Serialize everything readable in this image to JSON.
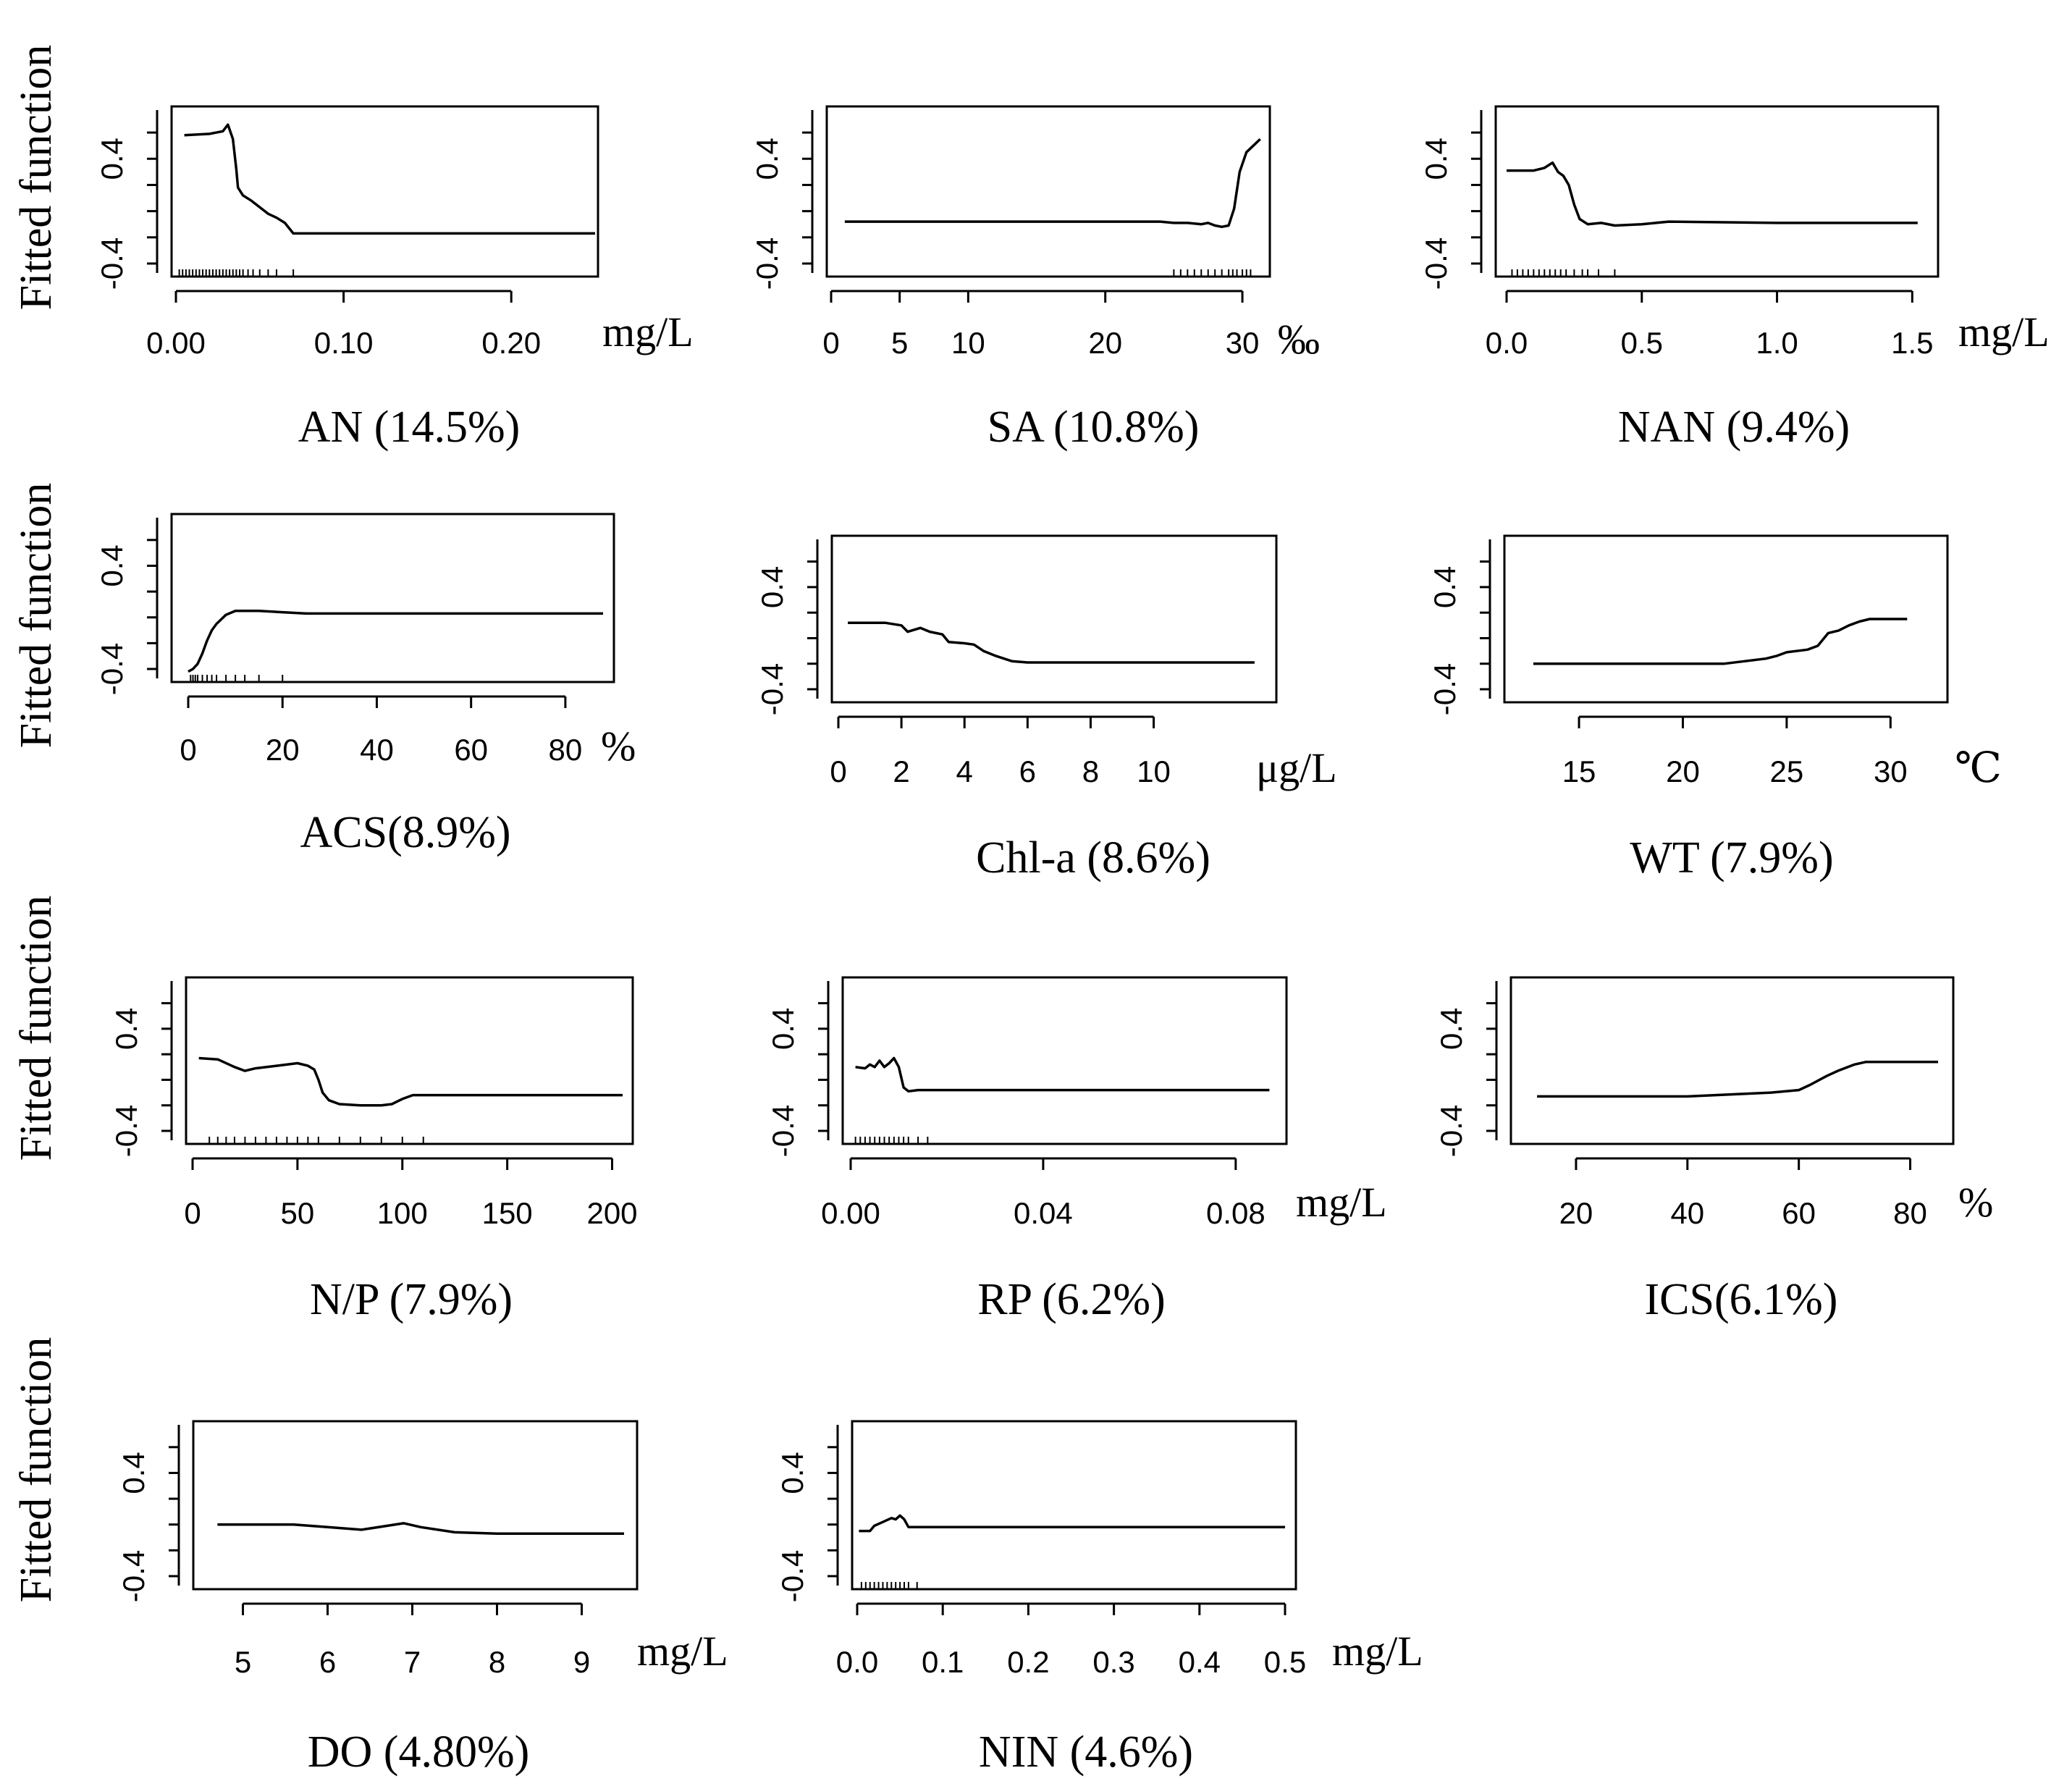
{
  "figure": {
    "ylabel": "Fitted function"
  },
  "chart_data": [
    {
      "type": "line",
      "title": "AN (14.5%)",
      "unit": "mg/L",
      "xlim": [
        0,
        0.25
      ],
      "ylim": [
        -0.4,
        0.7
      ],
      "xticks": [
        0,
        0.1,
        0.2
      ],
      "xtick_labels": [
        "0.00",
        "0.10",
        "0.20"
      ],
      "yticks": [
        -0.4,
        0.4
      ],
      "ytick_labels": [
        "-0.4",
        "0.4"
      ],
      "rug": [
        0.002,
        0.004,
        0.006,
        0.008,
        0.01,
        0.012,
        0.014,
        0.016,
        0.018,
        0.02,
        0.022,
        0.024,
        0.026,
        0.028,
        0.03,
        0.032,
        0.034,
        0.036,
        0.038,
        0.04,
        0.043,
        0.046,
        0.05,
        0.055,
        0.06,
        0.07
      ],
      "x": [
        0.005,
        0.02,
        0.028,
        0.031,
        0.034,
        0.036,
        0.037,
        0.04,
        0.045,
        0.05,
        0.055,
        0.06,
        0.065,
        0.07,
        0.08,
        0.1,
        0.25
      ],
      "y": [
        0.58,
        0.59,
        0.61,
        0.66,
        0.55,
        0.32,
        0.18,
        0.12,
        0.08,
        0.03,
        -0.02,
        -0.05,
        -0.09,
        -0.17,
        -0.17,
        -0.17,
        -0.17
      ]
    },
    {
      "type": "line",
      "title": "SA (10.8%)",
      "unit": "‰",
      "xlim": [
        0,
        31
      ],
      "ylim": [
        -0.4,
        0.7
      ],
      "xticks": [
        0,
        5,
        10,
        20,
        30
      ],
      "xtick_labels": [
        "0",
        "5",
        "10",
        "20",
        "30"
      ],
      "yticks": [
        -0.4,
        0.4
      ],
      "ytick_labels": [
        "-0.4",
        "0.4"
      ],
      "rug": [
        25,
        25.5,
        26,
        26.5,
        27,
        27.5,
        28,
        28.5,
        29,
        29.3,
        29.6,
        30,
        30.3,
        30.6
      ],
      "x": [
        1,
        10,
        20,
        24,
        25,
        26,
        27,
        27.5,
        28,
        28.5,
        29,
        29.4,
        29.8,
        30.3,
        30.8,
        31.3
      ],
      "y": [
        -0.08,
        -0.08,
        -0.08,
        -0.08,
        -0.09,
        -0.09,
        -0.1,
        -0.09,
        -0.11,
        -0.12,
        -0.11,
        0.02,
        0.3,
        0.45,
        0.5,
        0.55
      ]
    },
    {
      "type": "line",
      "title": "NAN (9.4%)",
      "unit": "mg/L",
      "xlim": [
        0,
        1.55
      ],
      "ylim": [
        -0.4,
        0.7
      ],
      "xticks": [
        0,
        0.5,
        1.0,
        1.5
      ],
      "xtick_labels": [
        "0.0",
        "0.5",
        "1.0",
        "1.5"
      ],
      "yticks": [
        -0.4,
        0.4
      ],
      "ytick_labels": [
        "-0.4",
        "0.4"
      ],
      "rug": [
        0.02,
        0.04,
        0.06,
        0.08,
        0.1,
        0.12,
        0.14,
        0.16,
        0.18,
        0.2,
        0.22,
        0.25,
        0.28,
        0.3,
        0.34,
        0.4
      ],
      "x": [
        0,
        0.1,
        0.14,
        0.17,
        0.19,
        0.21,
        0.23,
        0.25,
        0.27,
        0.3,
        0.35,
        0.4,
        0.5,
        0.6,
        1.0,
        1.52
      ],
      "y": [
        0.31,
        0.31,
        0.33,
        0.37,
        0.3,
        0.27,
        0.2,
        0.05,
        -0.06,
        -0.1,
        -0.09,
        -0.11,
        -0.1,
        -0.08,
        -0.09,
        -0.09
      ]
    },
    {
      "type": "line",
      "title": "ACS(8.9%)",
      "unit": "%",
      "xlim": [
        0,
        88
      ],
      "ylim": [
        -0.4,
        0.7
      ],
      "xticks": [
        0,
        20,
        40,
        60,
        80
      ],
      "xtick_labels": [
        "0",
        "20",
        "40",
        "60",
        "80"
      ],
      "yticks": [
        -0.4,
        0.4
      ],
      "ytick_labels": [
        "-0.4",
        "0.4"
      ],
      "rug": [
        0.5,
        1,
        1.5,
        2,
        3,
        4,
        5,
        6,
        8,
        10,
        12,
        15,
        20
      ],
      "x": [
        0,
        1,
        2,
        3,
        4,
        5,
        6,
        8,
        10,
        12,
        15,
        20,
        25,
        50,
        88
      ],
      "y": [
        -0.42,
        -0.4,
        -0.36,
        -0.28,
        -0.18,
        -0.1,
        -0.05,
        0.02,
        0.05,
        0.05,
        0.05,
        0.04,
        0.03,
        0.03,
        0.03
      ]
    },
    {
      "type": "line",
      "title": "Chl-a (8.6%)",
      "unit": "μg/L",
      "xlim": [
        0,
        13.5
      ],
      "ylim": [
        -0.4,
        0.7
      ],
      "xticks": [
        0,
        2,
        4,
        6,
        8,
        10
      ],
      "xtick_labels": [
        "0",
        "2",
        "4",
        "6",
        "8",
        "10"
      ],
      "yticks": [
        -0.4,
        0.4
      ],
      "ytick_labels": [
        "-0.4",
        "0.4"
      ],
      "rug": [],
      "x": [
        0.3,
        1.5,
        2,
        2.2,
        2.6,
        2.9,
        3.3,
        3.5,
        4,
        4.3,
        4.6,
        5,
        5.5,
        6,
        8,
        13.2
      ],
      "y": [
        0.12,
        0.12,
        0.1,
        0.05,
        0.08,
        0.05,
        0.03,
        -0.03,
        -0.04,
        -0.05,
        -0.1,
        -0.14,
        -0.18,
        -0.19,
        -0.19,
        -0.19
      ]
    },
    {
      "type": "line",
      "title": "WT (7.9%)",
      "unit": "℃",
      "xlim": [
        12,
        31
      ],
      "ylim": [
        -0.4,
        0.7
      ],
      "xticks": [
        15,
        20,
        25,
        30
      ],
      "xtick_labels": [
        "15",
        "20",
        "25",
        "30"
      ],
      "yticks": [
        -0.4,
        0.4
      ],
      "ytick_labels": [
        "-0.4",
        "0.4"
      ],
      "rug": [],
      "x": [
        12.8,
        18,
        22,
        23,
        24,
        24.5,
        25,
        26,
        26.5,
        27,
        27.5,
        28,
        28.5,
        29,
        30,
        30.8
      ],
      "y": [
        -0.2,
        -0.2,
        -0.2,
        -0.18,
        -0.16,
        -0.14,
        -0.11,
        -0.09,
        -0.06,
        0.04,
        0.06,
        0.1,
        0.13,
        0.15,
        0.15,
        0.15
      ]
    },
    {
      "type": "line",
      "title": "N/P (7.9%)",
      "unit": "",
      "xlim": [
        0,
        205
      ],
      "ylim": [
        -0.4,
        0.7
      ],
      "xticks": [
        0,
        50,
        100,
        150,
        200
      ],
      "xtick_labels": [
        "0",
        "50",
        "100",
        "150",
        "200"
      ],
      "yticks": [
        -0.4,
        0.4
      ],
      "ytick_labels": [
        "-0.4",
        "0.4"
      ],
      "rug": [
        8,
        12,
        16,
        20,
        25,
        30,
        35,
        40,
        45,
        50,
        55,
        60,
        70,
        80,
        90,
        100,
        110
      ],
      "x": [
        3,
        12,
        20,
        25,
        30,
        40,
        50,
        55,
        58,
        60,
        62,
        65,
        70,
        80,
        90,
        95,
        100,
        105,
        110,
        205
      ],
      "y": [
        0.17,
        0.16,
        0.1,
        0.07,
        0.09,
        0.11,
        0.13,
        0.11,
        0.08,
        0.0,
        -0.1,
        -0.16,
        -0.19,
        -0.2,
        -0.2,
        -0.19,
        -0.15,
        -0.12,
        -0.12,
        -0.12
      ]
    },
    {
      "type": "line",
      "title": "RP (6.2%)",
      "unit": "mg/L",
      "xlim": [
        0,
        0.088
      ],
      "ylim": [
        -0.4,
        0.7
      ],
      "xticks": [
        0,
        0.04,
        0.08
      ],
      "xtick_labels": [
        "0.00",
        "0.04",
        "0.08"
      ],
      "yticks": [
        -0.4,
        0.4
      ],
      "ytick_labels": [
        "-0.4",
        "0.4"
      ],
      "rug": [
        0.001,
        0.002,
        0.003,
        0.004,
        0.005,
        0.006,
        0.007,
        0.008,
        0.009,
        0.01,
        0.011,
        0.012,
        0.014,
        0.016
      ],
      "x": [
        0.001,
        0.003,
        0.004,
        0.005,
        0.006,
        0.007,
        0.008,
        0.009,
        0.01,
        0.011,
        0.012,
        0.014,
        0.02,
        0.087
      ],
      "y": [
        0.1,
        0.09,
        0.12,
        0.1,
        0.15,
        0.1,
        0.13,
        0.17,
        0.1,
        -0.06,
        -0.09,
        -0.08,
        -0.08,
        -0.08
      ]
    },
    {
      "type": "line",
      "title": "ICS(6.1%)",
      "unit": "%",
      "xlim": [
        10,
        85
      ],
      "ylim": [
        -0.4,
        0.7
      ],
      "xticks": [
        20,
        40,
        60,
        80
      ],
      "xtick_labels": [
        "20",
        "40",
        "60",
        "80"
      ],
      "yticks": [
        -0.4,
        0.4
      ],
      "ytick_labels": [
        "-0.4",
        "0.4"
      ],
      "rug": [],
      "x": [
        13,
        30,
        40,
        45,
        50,
        55,
        60,
        62,
        65,
        67,
        70,
        72,
        75,
        85
      ],
      "y": [
        -0.13,
        -0.13,
        -0.13,
        -0.12,
        -0.11,
        -0.1,
        -0.08,
        -0.04,
        0.03,
        0.07,
        0.12,
        0.14,
        0.14,
        0.14
      ]
    },
    {
      "type": "line",
      "title": "DO (4.80%)",
      "unit": "mg/L",
      "xlim": [
        4.5,
        9.5
      ],
      "ylim": [
        -0.4,
        0.7
      ],
      "xticks": [
        5,
        6,
        7,
        8,
        9
      ],
      "xtick_labels": [
        "5",
        "6",
        "7",
        "8",
        "9"
      ],
      "yticks": [
        -0.4,
        0.4
      ],
      "ytick_labels": [
        "-0.4",
        "0.4"
      ],
      "rug": [],
      "x": [
        4.7,
        5.6,
        6.0,
        6.4,
        6.7,
        6.9,
        7.1,
        7.5,
        8.0,
        9.5
      ],
      "y": [
        0.0,
        0.0,
        -0.02,
        -0.04,
        -0.01,
        0.01,
        -0.02,
        -0.06,
        -0.07,
        -0.07
      ]
    },
    {
      "type": "line",
      "title": "NIN (4.6%)",
      "unit": "mg/L",
      "xlim": [
        0,
        0.5
      ],
      "ylim": [
        -0.4,
        0.7
      ],
      "xticks": [
        0,
        0.1,
        0.2,
        0.3,
        0.4,
        0.5
      ],
      "xtick_labels": [
        "0.0",
        "0.1",
        "0.2",
        "0.3",
        "0.4",
        "0.5"
      ],
      "yticks": [
        -0.4,
        0.4
      ],
      "ytick_labels": [
        "-0.4",
        "0.4"
      ],
      "rug": [
        0.005,
        0.01,
        0.015,
        0.02,
        0.025,
        0.03,
        0.035,
        0.04,
        0.045,
        0.05,
        0.055,
        0.06,
        0.07
      ],
      "x": [
        0.002,
        0.015,
        0.02,
        0.03,
        0.04,
        0.045,
        0.05,
        0.055,
        0.06,
        0.08,
        0.1,
        0.5
      ],
      "y": [
        -0.05,
        -0.05,
        -0.01,
        0.02,
        0.05,
        0.04,
        0.07,
        0.04,
        -0.02,
        -0.02,
        -0.02,
        -0.02
      ]
    }
  ]
}
